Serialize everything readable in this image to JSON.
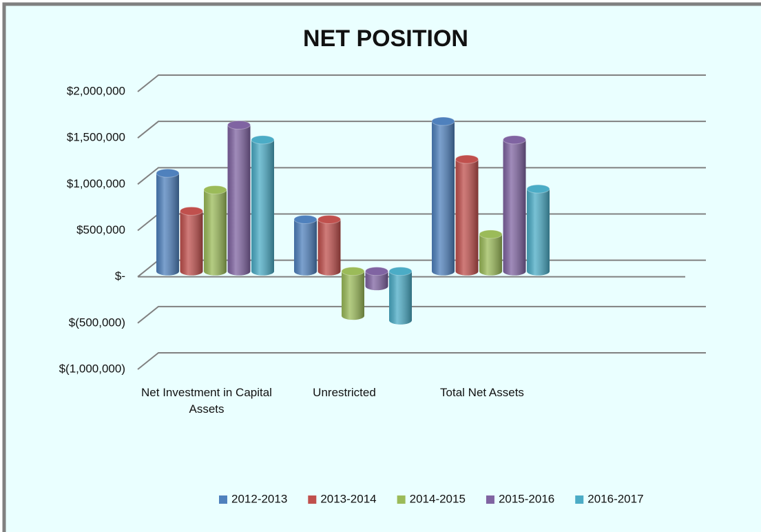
{
  "chart_data": {
    "type": "bar3d",
    "title": "NET POSITION",
    "categories": [
      "Net Investment in Capital Assets",
      "Unrestricted",
      "Total Net Assets"
    ],
    "series": [
      {
        "name": "2012-2013",
        "color": "#4f81bd",
        "values": [
          1060000,
          560000,
          1620000
        ]
      },
      {
        "name": "2013-2014",
        "color": "#c0504d",
        "values": [
          650000,
          560000,
          1210000
        ]
      },
      {
        "name": "2014-2015",
        "color": "#9bbb59",
        "values": [
          880000,
          -480000,
          400000
        ]
      },
      {
        "name": "2015-2016",
        "color": "#8064a2",
        "values": [
          1580000,
          -160000,
          1420000
        ]
      },
      {
        "name": "2016-2017",
        "color": "#4bacc6",
        "values": [
          1420000,
          -530000,
          890000
        ]
      }
    ],
    "ylim": [
      -1000000,
      2000000
    ],
    "yticks": [
      {
        "value": -1000000,
        "label": "$(1,000,000)"
      },
      {
        "value": -500000,
        "label": "$(500,000)"
      },
      {
        "value": 0,
        "label": "$-"
      },
      {
        "value": 500000,
        "label": "$500,000"
      },
      {
        "value": 1000000,
        "label": "$1,000,000"
      },
      {
        "value": 1500000,
        "label": "$1,500,000"
      },
      {
        "value": 2000000,
        "label": "$2,000,000"
      }
    ],
    "grid": true,
    "legend": "bottom"
  }
}
